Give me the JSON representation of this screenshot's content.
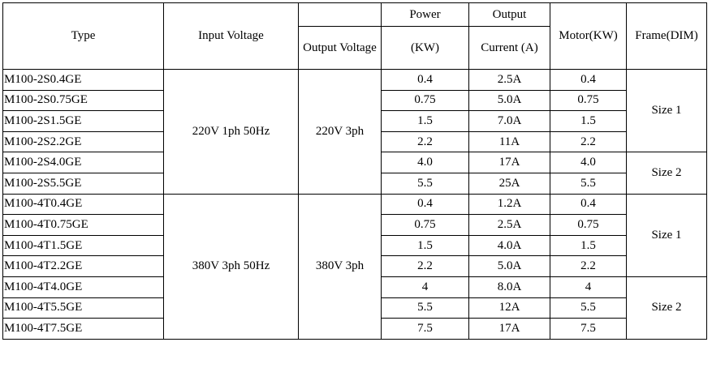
{
  "header": {
    "type": "Type",
    "input_voltage": "Input Voltage",
    "output_voltage": "Output Voltage",
    "power": "Power",
    "power_unit": "(KW)",
    "output": "Output",
    "current": "Current (A)",
    "motor": "Motor(KW)",
    "frame": "Frame(DIM)"
  },
  "groups": [
    {
      "input_voltage": "220V 1ph 50Hz",
      "output_voltage": "220V 3ph",
      "frames": [
        {
          "label": "Size 1",
          "rows": [
            [
              "M100-2S0.4GE",
              "0.4",
              "2.5A",
              "0.4"
            ],
            [
              "M100-2S0.75GE",
              "0.75",
              "5.0A",
              "0.75"
            ],
            [
              "M100-2S1.5GE",
              "1.5",
              "7.0A",
              "1.5"
            ],
            [
              "M100-2S2.2GE",
              "2.2",
              "11A",
              "2.2"
            ]
          ]
        },
        {
          "label": "Size 2",
          "rows": [
            [
              "M100-2S4.0GE",
              "4.0",
              "17A",
              "4.0"
            ],
            [
              "M100-2S5.5GE",
              "5.5",
              "25A",
              "5.5"
            ]
          ]
        }
      ]
    },
    {
      "input_voltage": "380V 3ph 50Hz",
      "output_voltage": "380V 3ph",
      "frames": [
        {
          "label": "Size 1",
          "rows": [
            [
              "M100-4T0.4GE",
              "0.4",
              "1.2A",
              "0.4"
            ],
            [
              "M100-4T0.75GE",
              "0.75",
              "2.5A",
              "0.75"
            ],
            [
              "M100-4T1.5GE",
              "1.5",
              "4.0A",
              "1.5"
            ],
            [
              "M100-4T2.2GE",
              "2.2",
              "5.0A",
              "2.2"
            ]
          ]
        },
        {
          "label": "Size 2",
          "rows": [
            [
              "M100-4T4.0GE",
              "4",
              "8.0A",
              "4"
            ],
            [
              "M100-4T5.5GE",
              "5.5",
              "12A",
              "5.5"
            ],
            [
              "M100-4T7.5GE",
              "7.5",
              "17A",
              "7.5"
            ]
          ]
        }
      ]
    }
  ]
}
